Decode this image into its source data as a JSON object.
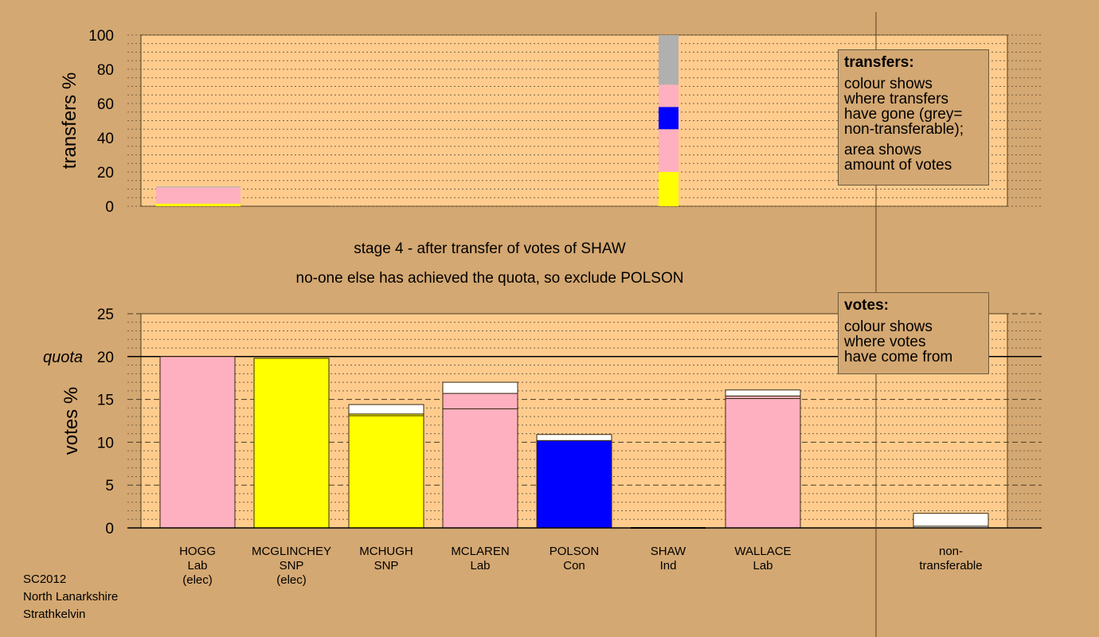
{
  "colors": {
    "background": "#d4a872",
    "plot_background": "#ffcc8e",
    "Lab": "#ffb0c0",
    "SNP": "#ffff00",
    "Con": "#0000ff",
    "non_transferable": "#b0b0b0",
    "white": "#ffffff"
  },
  "captions": {
    "stage": "stage 4 - after transfer of votes of SHAW",
    "note": "no-one else has achieved the quota, so exclude POLSON"
  },
  "footer": {
    "line1": "SC2012",
    "line2": "North Lanarkshire",
    "line3": "Strathkelvin"
  },
  "legend_transfers": {
    "title": "transfers:",
    "lines": [
      "colour shows",
      "where transfers",
      "have gone (grey=",
      "non-transferable);"
    ],
    "lines2": [
      "area shows",
      "amount of votes"
    ]
  },
  "legend_votes": {
    "title": "votes:",
    "lines": [
      "colour shows",
      "where votes",
      "have come from"
    ]
  },
  "chart_data": [
    {
      "type": "bar",
      "ylabel": "transfers %",
      "ylim": [
        0,
        100
      ],
      "yticks": [
        0,
        20,
        40,
        60,
        80,
        100
      ],
      "bars": [
        {
          "candidate": "HOGG",
          "segments": [
            {
              "party": "SNP",
              "value": 1.5
            },
            {
              "party": "Lab",
              "value": 9.5
            },
            {
              "party": "non_transferable",
              "value": 0.5
            }
          ]
        },
        {
          "candidate": "SHAW",
          "segments": [
            {
              "party": "SNP",
              "value": 20
            },
            {
              "party": "Lab",
              "value": 25
            },
            {
              "party": "Con",
              "value": 13
            },
            {
              "party": "Lab",
              "value": 13
            },
            {
              "party": "non_transferable",
              "value": 29
            }
          ]
        }
      ]
    },
    {
      "type": "bar",
      "ylabel": "votes %",
      "ylim": [
        0,
        25
      ],
      "yticks": [
        0,
        5,
        10,
        15,
        20,
        25
      ],
      "quota": 20,
      "quota_label": "quota",
      "categories": [
        {
          "name": "HOGG",
          "party": "Lab",
          "extra": "(elec)"
        },
        {
          "name": "MCGLINCHEY",
          "party": "SNP",
          "extra": "(elec)"
        },
        {
          "name": "MCHUGH",
          "party": "SNP",
          "extra": ""
        },
        {
          "name": "MCLAREN",
          "party": "Lab",
          "extra": ""
        },
        {
          "name": "POLSON",
          "party": "Con",
          "extra": ""
        },
        {
          "name": "SHAW",
          "party": "Ind",
          "extra": ""
        },
        {
          "name": "WALLACE",
          "party": "Lab",
          "extra": ""
        },
        {
          "name": "non-",
          "party": "transferable",
          "extra": ""
        }
      ],
      "bars": [
        {
          "candidate": "HOGG",
          "segments": [
            {
              "color": "Lab",
              "value": 20.0
            }
          ]
        },
        {
          "candidate": "MCGLINCHEY",
          "segments": [
            {
              "color": "SNP",
              "value": 19.8
            }
          ]
        },
        {
          "candidate": "MCHUGH",
          "segments": [
            {
              "color": "SNP",
              "value": 13.1
            },
            {
              "color": "SNP",
              "value": 0.2
            },
            {
              "color": "white",
              "value": 1.1
            }
          ]
        },
        {
          "candidate": "MCLAREN",
          "segments": [
            {
              "color": "Lab",
              "value": 13.9
            },
            {
              "color": "Lab",
              "value": 1.8
            },
            {
              "color": "white",
              "value": 1.3
            }
          ]
        },
        {
          "candidate": "POLSON",
          "segments": [
            {
              "color": "Con",
              "value": 10.2
            },
            {
              "color": "white",
              "value": 0.7
            }
          ]
        },
        {
          "candidate": "SHAW",
          "segments": [
            {
              "color": "white",
              "value": 0.0
            }
          ]
        },
        {
          "candidate": "WALLACE",
          "segments": [
            {
              "color": "Lab",
              "value": 15.1
            },
            {
              "color": "Lab",
              "value": 0.3
            },
            {
              "color": "white",
              "value": 0.7
            }
          ]
        },
        {
          "candidate": "non-transferable",
          "segments": [
            {
              "color": "white",
              "value": 0.2
            },
            {
              "color": "white",
              "value": 1.5
            }
          ]
        }
      ]
    }
  ]
}
